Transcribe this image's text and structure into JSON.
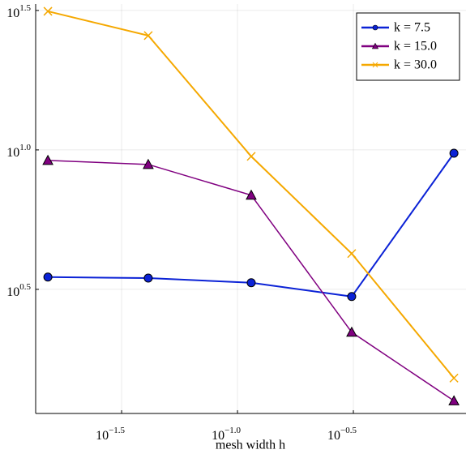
{
  "chart_data": {
    "type": "line",
    "x_label": "mesh width h",
    "xlog": true,
    "ylog": true,
    "grid": true,
    "legend": "top-right",
    "x": [
      0.0152,
      0.0412,
      0.1146,
      0.311,
      0.859
    ],
    "series": [
      {
        "name": "k = 7.5",
        "color": "#0b22d6",
        "marker": "circle",
        "values": [
          3.5,
          3.47,
          3.34,
          2.98,
          9.73
        ]
      },
      {
        "name": "k = 15.0",
        "color": "#800080",
        "marker": "triangle",
        "values": [
          9.17,
          8.87,
          6.88,
          2.22,
          1.26
        ]
      },
      {
        "name": "k = 30.0",
        "color": "#f5a800",
        "marker": "x",
        "values": [
          31.4,
          25.7,
          9.48,
          4.25,
          1.52
        ]
      }
    ],
    "xlim": [
      0.01346,
      0.9683
    ],
    "ylim": [
      1.135,
      33.34
    ],
    "xticks": [
      {
        "value": 0.031623,
        "label": {
          "base": "10",
          "exponent": "−1.5"
        }
      },
      {
        "value": 0.1,
        "label": {
          "base": "10",
          "exponent": "−1.0"
        }
      },
      {
        "value": 0.31623,
        "label": {
          "base": "10",
          "exponent": "−0.5"
        }
      }
    ],
    "yticks": [
      {
        "value": 3.1623,
        "label": {
          "base": "10",
          "exponent": "0.5"
        }
      },
      {
        "value": 10,
        "label": {
          "base": "10",
          "exponent": "1.0"
        }
      },
      {
        "value": 31.623,
        "label": {
          "base": "10",
          "exponent": "1.5"
        }
      }
    ]
  }
}
